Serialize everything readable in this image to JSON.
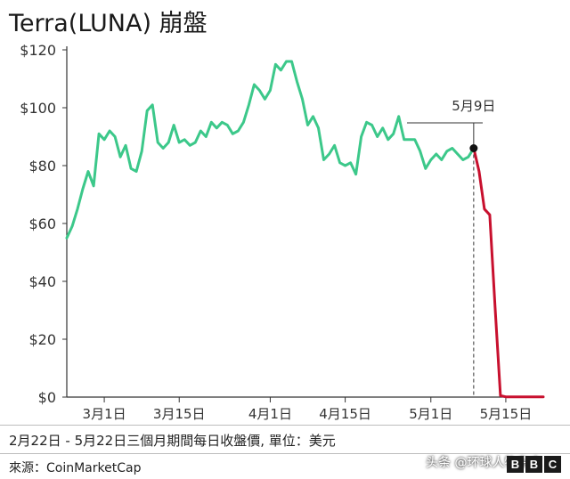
{
  "title": "Terra(LUNA) 崩盤",
  "caption": "2月22日 - 5月22日三個月期間每日收盤價, 單位：美元",
  "source": "來源：CoinMarketCap",
  "watermark": "头条 @环球人物杂志",
  "logo": [
    "B",
    "B",
    "C"
  ],
  "colors": {
    "pre": "#3cc88a",
    "post": "#c8102e",
    "axis": "#333333",
    "grid": "#e0e0e0",
    "text": "#222222"
  },
  "chart_data": {
    "type": "line",
    "title": "Terra(LUNA) 崩盤",
    "xlabel": "",
    "ylabel": "",
    "ylim": [
      0,
      120
    ],
    "yticks": [
      0,
      20,
      40,
      60,
      80,
      100,
      120
    ],
    "ytick_labels": [
      "$0",
      "$20",
      "$40",
      "$60",
      "$80",
      "$100",
      "$120"
    ],
    "xticks": [
      {
        "date": "2022-03-01",
        "label": "3月1日"
      },
      {
        "date": "2022-03-15",
        "label": "3月15日"
      },
      {
        "date": "2022-04-01",
        "label": "4月1日"
      },
      {
        "date": "2022-04-15",
        "label": "4月15日"
      },
      {
        "date": "2022-05-01",
        "label": "5月1日"
      },
      {
        "date": "2022-05-15",
        "label": "5月15日"
      }
    ],
    "annotation": {
      "label": "5月9日",
      "date": "2022-05-09",
      "value": 86
    },
    "grid": false,
    "series": [
      {
        "color": "#3cc88a",
        "dates": [
          "2022-02-22",
          "2022-02-23",
          "2022-02-24",
          "2022-02-25",
          "2022-02-26",
          "2022-02-27",
          "2022-02-28",
          "2022-03-01",
          "2022-03-02",
          "2022-03-03",
          "2022-03-04",
          "2022-03-05",
          "2022-03-06",
          "2022-03-07",
          "2022-03-08",
          "2022-03-09",
          "2022-03-10",
          "2022-03-11",
          "2022-03-12",
          "2022-03-13",
          "2022-03-14",
          "2022-03-15",
          "2022-03-16",
          "2022-03-17",
          "2022-03-18",
          "2022-03-19",
          "2022-03-20",
          "2022-03-21",
          "2022-03-22",
          "2022-03-23",
          "2022-03-24",
          "2022-03-25",
          "2022-03-26",
          "2022-03-27",
          "2022-03-28",
          "2022-03-29",
          "2022-03-30",
          "2022-03-31",
          "2022-04-01",
          "2022-04-02",
          "2022-04-03",
          "2022-04-04",
          "2022-04-05",
          "2022-04-06",
          "2022-04-07",
          "2022-04-08",
          "2022-04-09",
          "2022-04-10",
          "2022-04-11",
          "2022-04-12",
          "2022-04-13",
          "2022-04-14",
          "2022-04-15",
          "2022-04-16",
          "2022-04-17",
          "2022-04-18",
          "2022-04-19",
          "2022-04-20",
          "2022-04-21",
          "2022-04-22",
          "2022-04-23",
          "2022-04-24",
          "2022-04-25",
          "2022-04-26",
          "2022-04-27",
          "2022-04-28",
          "2022-04-29",
          "2022-04-30",
          "2022-05-01",
          "2022-05-02",
          "2022-05-03",
          "2022-05-04",
          "2022-05-05",
          "2022-05-06",
          "2022-05-07",
          "2022-05-08",
          "2022-05-09"
        ],
        "values": [
          55,
          59,
          65,
          72,
          78,
          73,
          91,
          89,
          92,
          90,
          83,
          87,
          79,
          78,
          85,
          99,
          101,
          88,
          86,
          88,
          94,
          88,
          89,
          87,
          88,
          92,
          90,
          95,
          93,
          95,
          94,
          91,
          92,
          95,
          101,
          108,
          106,
          103,
          106,
          115,
          113,
          116,
          116,
          109,
          103,
          94,
          97,
          93,
          82,
          84,
          87,
          81,
          80,
          81,
          77,
          90,
          95,
          94,
          90,
          93,
          89,
          91,
          97,
          89,
          89,
          89,
          85,
          79,
          82,
          84,
          82,
          85,
          86,
          84,
          82,
          83,
          86
        ]
      },
      {
        "color": "#c8102e",
        "dates": [
          "2022-05-09",
          "2022-05-10",
          "2022-05-11",
          "2022-05-12",
          "2022-05-13",
          "2022-05-14",
          "2022-05-15",
          "2022-05-16",
          "2022-05-17",
          "2022-05-18",
          "2022-05-19",
          "2022-05-20",
          "2022-05-21",
          "2022-05-22"
        ],
        "values": [
          86,
          78,
          65,
          63,
          31,
          0.5,
          0.1,
          0.05,
          0.05,
          0.05,
          0.05,
          0.05,
          0.05,
          0.05
        ]
      }
    ]
  }
}
